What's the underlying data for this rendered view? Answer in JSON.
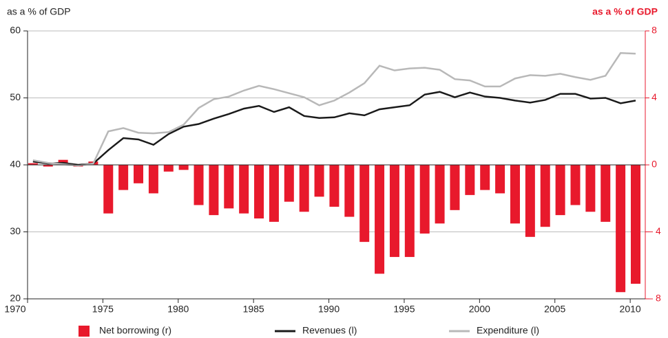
{
  "chart_data": {
    "type": "bar-line",
    "y_label": "as a % of GDP",
    "y2_label": "as a % of GDP",
    "x": [
      1970,
      1971,
      1972,
      1973,
      1974,
      1975,
      1976,
      1977,
      1978,
      1979,
      1980,
      1981,
      1982,
      1983,
      1984,
      1985,
      1986,
      1987,
      1988,
      1989,
      1990,
      1991,
      1992,
      1993,
      1994,
      1995,
      1996,
      1997,
      1998,
      1999,
      2000,
      2001,
      2002,
      2003,
      2004,
      2005,
      2006,
      2007,
      2008,
      2009,
      2010
    ],
    "series": [
      {
        "name": "Net borrowing (r)",
        "kind": "bar",
        "axis": "y2",
        "color": "#e8192c",
        "values": [
          0.1,
          -0.1,
          0.3,
          -0.1,
          0.2,
          -2.9,
          -1.5,
          -1.1,
          -1.7,
          -0.4,
          -0.3,
          -2.4,
          -3.0,
          -2.6,
          -2.9,
          -3.2,
          -3.4,
          -2.2,
          -2.8,
          -1.9,
          -2.5,
          -3.1,
          -4.6,
          -6.5,
          -5.5,
          -5.5,
          -4.1,
          -3.5,
          -2.7,
          -1.8,
          -1.5,
          -1.7,
          -3.5,
          -4.3,
          -3.7,
          -3.0,
          -2.4,
          -2.8,
          -3.4,
          -7.6,
          -7.1
        ]
      },
      {
        "name": "Revenues (l)",
        "kind": "line",
        "color": "#1a1a1a",
        "values": [
          40.5,
          40.2,
          40.3,
          40.0,
          40.2,
          42.2,
          44.0,
          43.8,
          43.0,
          44.6,
          45.7,
          46.1,
          46.9,
          47.6,
          48.4,
          48.8,
          47.9,
          48.6,
          47.3,
          47.0,
          47.1,
          47.7,
          47.4,
          48.3,
          48.6,
          48.9,
          50.5,
          50.9,
          50.1,
          50.8,
          50.2,
          50.0,
          49.6,
          49.3,
          49.7,
          50.6,
          50.6,
          49.9,
          50.0,
          49.2,
          49.6
        ]
      },
      {
        "name": "Expenditure (l)",
        "kind": "line",
        "color": "#b8b8b8",
        "values": [
          40.7,
          40.3,
          40.1,
          39.9,
          40.2,
          45.0,
          45.5,
          44.8,
          44.7,
          44.9,
          46.0,
          48.5,
          49.8,
          50.2,
          51.1,
          51.8,
          51.3,
          50.7,
          50.1,
          48.9,
          49.6,
          50.8,
          52.2,
          54.8,
          54.1,
          54.4,
          54.5,
          54.2,
          52.8,
          52.6,
          51.7,
          51.7,
          52.9,
          53.4,
          53.3,
          53.6,
          53.1,
          52.7,
          53.3,
          56.7,
          56.6
        ]
      }
    ],
    "xlim": [
      1970,
      2011
    ],
    "xticks": [
      1970,
      1975,
      1980,
      1985,
      1990,
      1995,
      2000,
      2005,
      2010
    ],
    "ylim": [
      20,
      60
    ],
    "yticks": [
      20,
      30,
      40,
      50,
      60
    ],
    "y2lim": [
      -8,
      8
    ],
    "y2ticks": [
      {
        "value": -8,
        "label": "– 8"
      },
      {
        "value": -4,
        "label": "– 4"
      },
      0,
      4,
      8
    ],
    "grid": true
  }
}
